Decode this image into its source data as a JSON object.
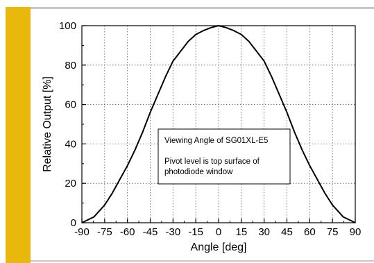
{
  "colors": {
    "accent": "#e8b90c",
    "rule": "#c8c8c8",
    "curve": "#000000",
    "grid": "#555555"
  },
  "chart_data": {
    "type": "line",
    "title": "",
    "xlabel": "Angle [deg]",
    "ylabel": "Relative Output [%]",
    "xlim": [
      -90,
      90
    ],
    "ylim": [
      0,
      100
    ],
    "xticks": [
      -90,
      -75,
      -60,
      -45,
      -30,
      -15,
      0,
      15,
      30,
      45,
      60,
      75,
      90
    ],
    "yticks": [
      0,
      20,
      40,
      60,
      80,
      100
    ],
    "xtick_labels": [
      "-90",
      "-75",
      "-60",
      "-45",
      "-30",
      "-15",
      "0",
      "15",
      "30",
      "45",
      "60",
      "75",
      "90"
    ],
    "ytick_labels": [
      "0",
      "20",
      "40",
      "60",
      "80",
      "100"
    ],
    "grid": true,
    "annotation": {
      "lines": [
        "Viewing Angle of SG01XL-E5",
        "",
        "Pivot level is top surface of",
        "photodiode window"
      ]
    },
    "series": [
      {
        "x": [
          -90,
          -82,
          -75,
          -70,
          -65,
          -60,
          -55,
          -50,
          -45,
          -40,
          -35,
          -30,
          -25,
          -20,
          -15,
          -10,
          -5,
          0,
          5,
          10,
          15,
          20,
          25,
          30,
          35,
          40,
          45,
          50,
          55,
          60,
          65,
          70,
          75,
          82,
          90
        ],
        "values": [
          0,
          3,
          9,
          15,
          22,
          29,
          37,
          46,
          56,
          65,
          74,
          82,
          87,
          92,
          95.5,
          97.5,
          99,
          100,
          99,
          97.5,
          95.5,
          92,
          87,
          82,
          74,
          65,
          56,
          46,
          37,
          29,
          22,
          15,
          9,
          3,
          0
        ]
      }
    ]
  }
}
